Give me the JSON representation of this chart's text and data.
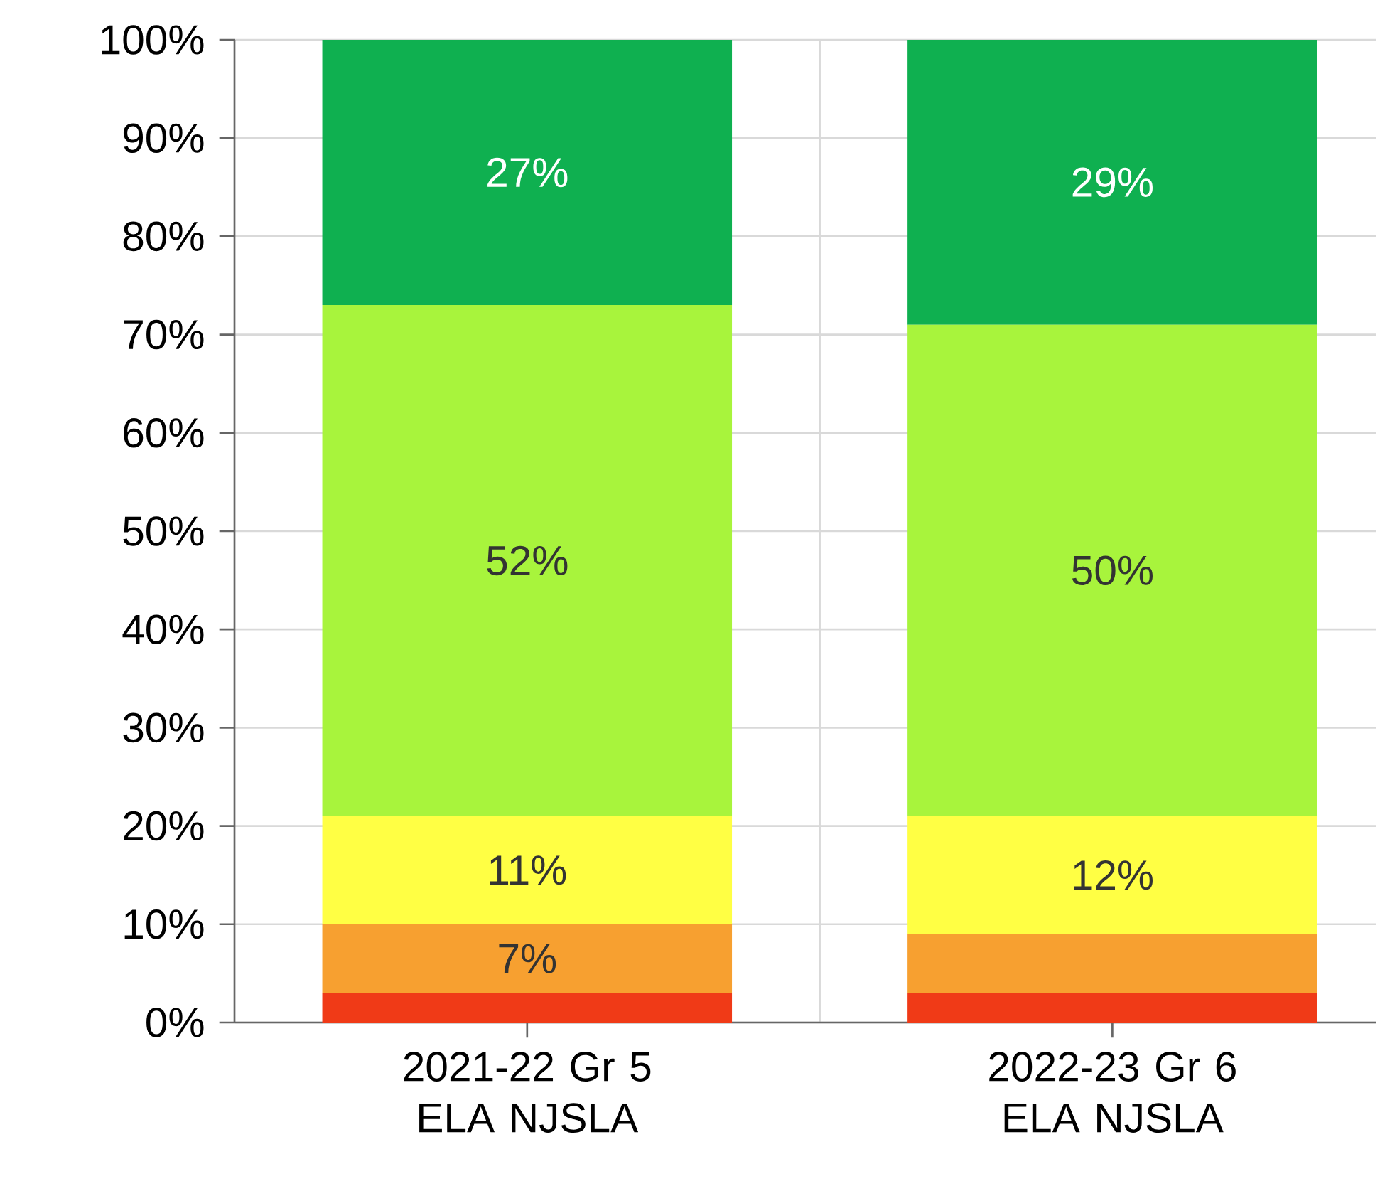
{
  "chart_data": {
    "type": "bar",
    "stacked": true,
    "grid": true,
    "categories": [
      "2021-22 Gr 5 ELA NJSLA",
      "2022-23 Gr 6 ELA NJSLA"
    ],
    "ylim": [
      0,
      100
    ],
    "yticks": [
      {
        "value": 0,
        "label": "0%"
      },
      {
        "value": 10,
        "label": "10%"
      },
      {
        "value": 20,
        "label": "20%"
      },
      {
        "value": 30,
        "label": "30%"
      },
      {
        "value": 40,
        "label": "40%"
      },
      {
        "value": 50,
        "label": "50%"
      },
      {
        "value": 60,
        "label": "60%"
      },
      {
        "value": 70,
        "label": "70%"
      },
      {
        "value": 80,
        "label": "80%"
      },
      {
        "value": 90,
        "label": "90%"
      },
      {
        "value": 100,
        "label": "100%"
      }
    ],
    "series": [
      {
        "color": "#f03a17",
        "values": [
          3,
          3
        ],
        "value_labels": [
          null,
          null
        ]
      },
      {
        "color": "#f7a030",
        "values": [
          7,
          6
        ],
        "value_labels": [
          "7%",
          null
        ]
      },
      {
        "color": "#ffff44",
        "values": [
          11,
          12
        ],
        "value_labels": [
          "11%",
          "12%"
        ]
      },
      {
        "color": "#a8f43c",
        "values": [
          52,
          50
        ],
        "value_labels": [
          "52%",
          "50%"
        ]
      },
      {
        "color": "#0fb050",
        "values": [
          27,
          29
        ],
        "value_labels": [
          "27%",
          "29%"
        ]
      }
    ]
  }
}
